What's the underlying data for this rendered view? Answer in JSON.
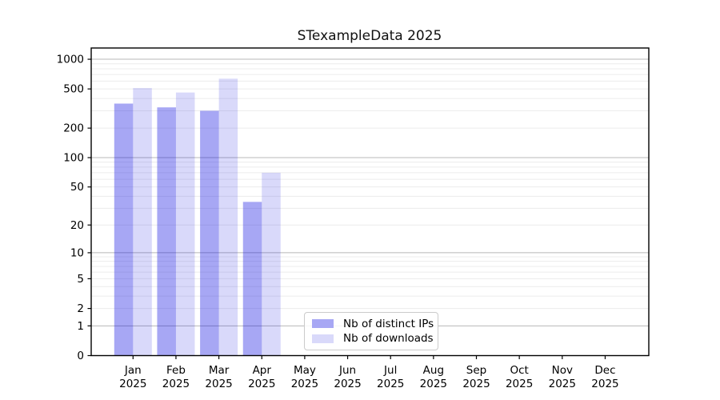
{
  "chart_data": {
    "type": "bar",
    "title": "STexampleData 2025",
    "yscale": "log1p",
    "ylim": [
      0,
      1300
    ],
    "yticks": [
      0,
      1,
      2,
      5,
      10,
      20,
      50,
      100,
      200,
      500,
      1000
    ],
    "grid": {
      "horizontal": true,
      "which": "major+minor",
      "major_at": [
        1,
        10,
        100,
        1000
      ]
    },
    "categories": [
      "Jan 2025",
      "Feb 2025",
      "Mar 2025",
      "Apr 2025",
      "May 2025",
      "Jun 2025",
      "Jul 2025",
      "Aug 2025",
      "Sep 2025",
      "Oct 2025",
      "Nov 2025",
      "Dec 2025"
    ],
    "series": [
      {
        "name": "Nb of distinct IPs",
        "color": "rgba(10,10,225,0.36)",
        "swatch_color": "#a7a7f4",
        "values": [
          355,
          325,
          300,
          35,
          0,
          0,
          0,
          0,
          0,
          0,
          0,
          0
        ]
      },
      {
        "name": "Nb of downloads",
        "color": "rgba(10,10,225,0.155)",
        "swatch_color": "#d9d9fa",
        "values": [
          510,
          460,
          635,
          70,
          0,
          0,
          0,
          0,
          0,
          0,
          0,
          0
        ]
      }
    ],
    "legend_position": "lower center",
    "colors": {
      "major_grid": "#b8b8b8",
      "minor_grid": "#ececec",
      "axis": "#000000",
      "background": "#ffffff"
    }
  }
}
